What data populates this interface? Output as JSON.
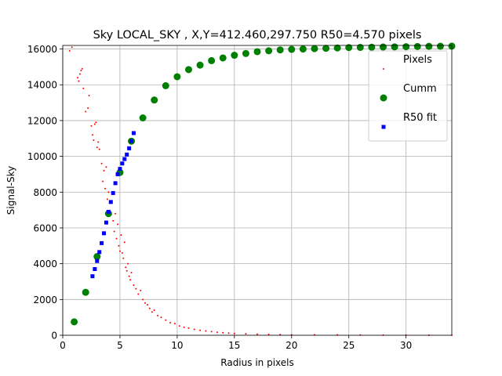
{
  "chart_data": {
    "type": "scatter",
    "title": "Sky LOCAL_SKY , X,Y=412.460,297.750 R50=4.570 pixels",
    "xlabel": "Radius in pixels",
    "ylabel": "Signal-Sky",
    "xlim": [
      0,
      34
    ],
    "ylim": [
      0,
      16200
    ],
    "x_ticks": [
      0,
      5,
      10,
      15,
      20,
      25,
      30
    ],
    "y_ticks": [
      0,
      2000,
      4000,
      6000,
      8000,
      10000,
      12000,
      14000,
      16000
    ],
    "grid": true,
    "legend_position": "top-right",
    "series": [
      {
        "name": "Pixels",
        "marker": "point",
        "color": "#ff0000",
        "points": [
          [
            0.6,
            15900
          ],
          [
            0.8,
            16100
          ],
          [
            1.3,
            14400
          ],
          [
            1.4,
            14200
          ],
          [
            1.5,
            14600
          ],
          [
            1.6,
            14800
          ],
          [
            1.7,
            14900
          ],
          [
            1.8,
            13800
          ],
          [
            2.0,
            12500
          ],
          [
            2.2,
            12700
          ],
          [
            2.3,
            13400
          ],
          [
            2.5,
            11700
          ],
          [
            2.6,
            11200
          ],
          [
            2.7,
            10900
          ],
          [
            2.8,
            11800
          ],
          [
            2.9,
            11900
          ],
          [
            3.0,
            10500
          ],
          [
            3.1,
            10800
          ],
          [
            3.2,
            10400
          ],
          [
            3.4,
            9600
          ],
          [
            3.5,
            8600
          ],
          [
            3.6,
            9200
          ],
          [
            3.7,
            8200
          ],
          [
            3.8,
            9400
          ],
          [
            3.9,
            7600
          ],
          [
            4.0,
            8000
          ],
          [
            4.1,
            6900
          ],
          [
            4.3,
            7400
          ],
          [
            4.4,
            6400
          ],
          [
            4.5,
            5800
          ],
          [
            4.6,
            6800
          ],
          [
            4.7,
            5400
          ],
          [
            4.8,
            6200
          ],
          [
            4.9,
            5000
          ],
          [
            5.0,
            4700
          ],
          [
            5.1,
            5600
          ],
          [
            5.2,
            4600
          ],
          [
            5.3,
            4300
          ],
          [
            5.4,
            5200
          ],
          [
            5.5,
            3800
          ],
          [
            5.6,
            3600
          ],
          [
            5.7,
            4000
          ],
          [
            5.8,
            3300
          ],
          [
            5.9,
            3100
          ],
          [
            6.0,
            3500
          ],
          [
            6.2,
            2800
          ],
          [
            6.4,
            2600
          ],
          [
            6.6,
            2300
          ],
          [
            6.8,
            2500
          ],
          [
            7.0,
            2000
          ],
          [
            7.2,
            1800
          ],
          [
            7.4,
            1700
          ],
          [
            7.6,
            1500
          ],
          [
            7.8,
            1300
          ],
          [
            8.0,
            1400
          ],
          [
            8.3,
            1100
          ],
          [
            8.6,
            1000
          ],
          [
            9.0,
            850
          ],
          [
            9.4,
            700
          ],
          [
            9.8,
            650
          ],
          [
            10.2,
            520
          ],
          [
            10.6,
            450
          ],
          [
            11.0,
            400
          ],
          [
            11.5,
            330
          ],
          [
            12.0,
            280
          ],
          [
            12.5,
            240
          ],
          [
            13.0,
            200
          ],
          [
            13.5,
            170
          ],
          [
            14.0,
            140
          ],
          [
            14.5,
            120
          ],
          [
            15.0,
            100
          ],
          [
            16.0,
            80
          ],
          [
            17.0,
            60
          ],
          [
            18.0,
            50
          ],
          [
            19.0,
            40
          ],
          [
            20.0,
            30
          ],
          [
            22.0,
            25
          ],
          [
            24.0,
            20
          ],
          [
            26.0,
            15
          ],
          [
            28.0,
            12
          ],
          [
            30.0,
            10
          ],
          [
            32.0,
            8
          ],
          [
            34.0,
            5
          ]
        ]
      },
      {
        "name": "Cumm",
        "marker": "circle",
        "color": "#008000",
        "points": [
          [
            1,
            750
          ],
          [
            2,
            2400
          ],
          [
            3,
            4400
          ],
          [
            4,
            6800
          ],
          [
            5,
            9100
          ],
          [
            6,
            10850
          ],
          [
            7,
            12150
          ],
          [
            8,
            13150
          ],
          [
            9,
            13950
          ],
          [
            10,
            14450
          ],
          [
            11,
            14850
          ],
          [
            12,
            15100
          ],
          [
            13,
            15350
          ],
          [
            14,
            15500
          ],
          [
            15,
            15650
          ],
          [
            16,
            15750
          ],
          [
            17,
            15850
          ],
          [
            18,
            15900
          ],
          [
            19,
            15950
          ],
          [
            20,
            15980
          ],
          [
            21,
            16000
          ],
          [
            22,
            16020
          ],
          [
            23,
            16040
          ],
          [
            24,
            16060
          ],
          [
            25,
            16080
          ],
          [
            26,
            16090
          ],
          [
            27,
            16100
          ],
          [
            28,
            16110
          ],
          [
            29,
            16120
          ],
          [
            30,
            16130
          ],
          [
            31,
            16140
          ],
          [
            32,
            16150
          ],
          [
            33,
            16155
          ],
          [
            34,
            16160
          ]
        ]
      },
      {
        "name": "R50 fit",
        "marker": "square",
        "color": "#0000ff",
        "points": [
          [
            2.6,
            3300
          ],
          [
            2.8,
            3700
          ],
          [
            3.0,
            4150
          ],
          [
            3.2,
            4650
          ],
          [
            3.4,
            5150
          ],
          [
            3.6,
            5700
          ],
          [
            3.8,
            6300
          ],
          [
            4.0,
            6900
          ],
          [
            4.2,
            7450
          ],
          [
            4.4,
            7950
          ],
          [
            4.6,
            8500
          ],
          [
            4.8,
            9000
          ],
          [
            5.0,
            9300
          ],
          [
            5.2,
            9600
          ],
          [
            5.4,
            9850
          ],
          [
            5.6,
            10100
          ],
          [
            5.8,
            10450
          ],
          [
            6.0,
            10850
          ],
          [
            6.2,
            11300
          ]
        ]
      }
    ]
  }
}
